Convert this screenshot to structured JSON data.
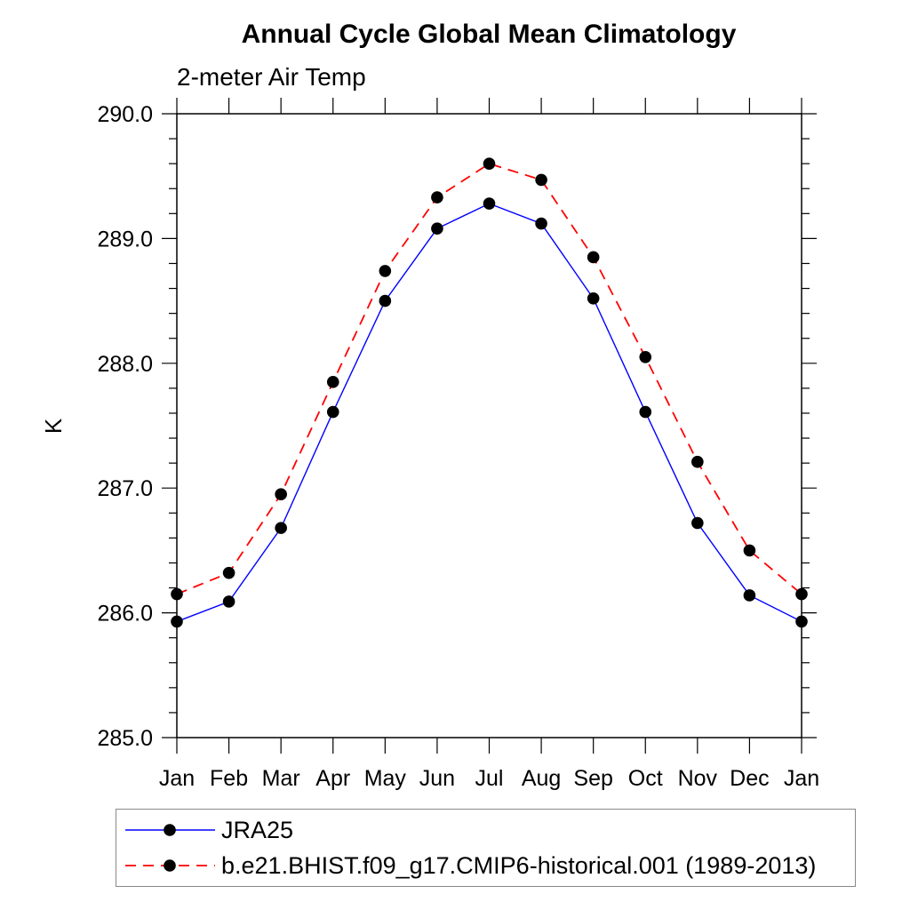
{
  "chart_data": {
    "type": "line",
    "title": "Annual Cycle Global Mean Climatology",
    "subtitle": "2-meter Air Temp",
    "ylabel": "K",
    "xlabel": "",
    "categories": [
      "Jan",
      "Feb",
      "Mar",
      "Apr",
      "May",
      "Jun",
      "Jul",
      "Aug",
      "Sep",
      "Oct",
      "Nov",
      "Dec",
      "Jan"
    ],
    "ylim": [
      285.0,
      290.0
    ],
    "ytick_values": [
      285.0,
      286.0,
      287.0,
      288.0,
      289.0,
      290.0
    ],
    "ytick_labels": [
      "285.0",
      "286.0",
      "287.0",
      "288.0",
      "289.0",
      "290.0"
    ],
    "ytick_minor_step": 0.2,
    "grid": false,
    "legend_position": "below-plot-boxed",
    "axis_color": "#000000",
    "marker_radius": 6.8,
    "series": [
      {
        "name": "JRA25",
        "color": "#0000ff",
        "line_style": "solid",
        "marker": "filled-circle",
        "marker_color": "#000000",
        "values": [
          285.93,
          286.09,
          286.68,
          287.61,
          288.5,
          289.08,
          289.28,
          289.12,
          288.52,
          287.61,
          286.72,
          286.14,
          285.93
        ]
      },
      {
        "name": "b.e21.BHIST.f09_g17.CMIP6-historical.001 (1989-2013)",
        "color": "#ff0000",
        "line_style": "dashed",
        "marker": "filled-circle",
        "marker_color": "#000000",
        "values": [
          286.15,
          286.32,
          286.95,
          287.85,
          288.74,
          289.33,
          289.6,
          289.47,
          288.85,
          288.05,
          287.21,
          286.5,
          286.15
        ]
      }
    ]
  }
}
